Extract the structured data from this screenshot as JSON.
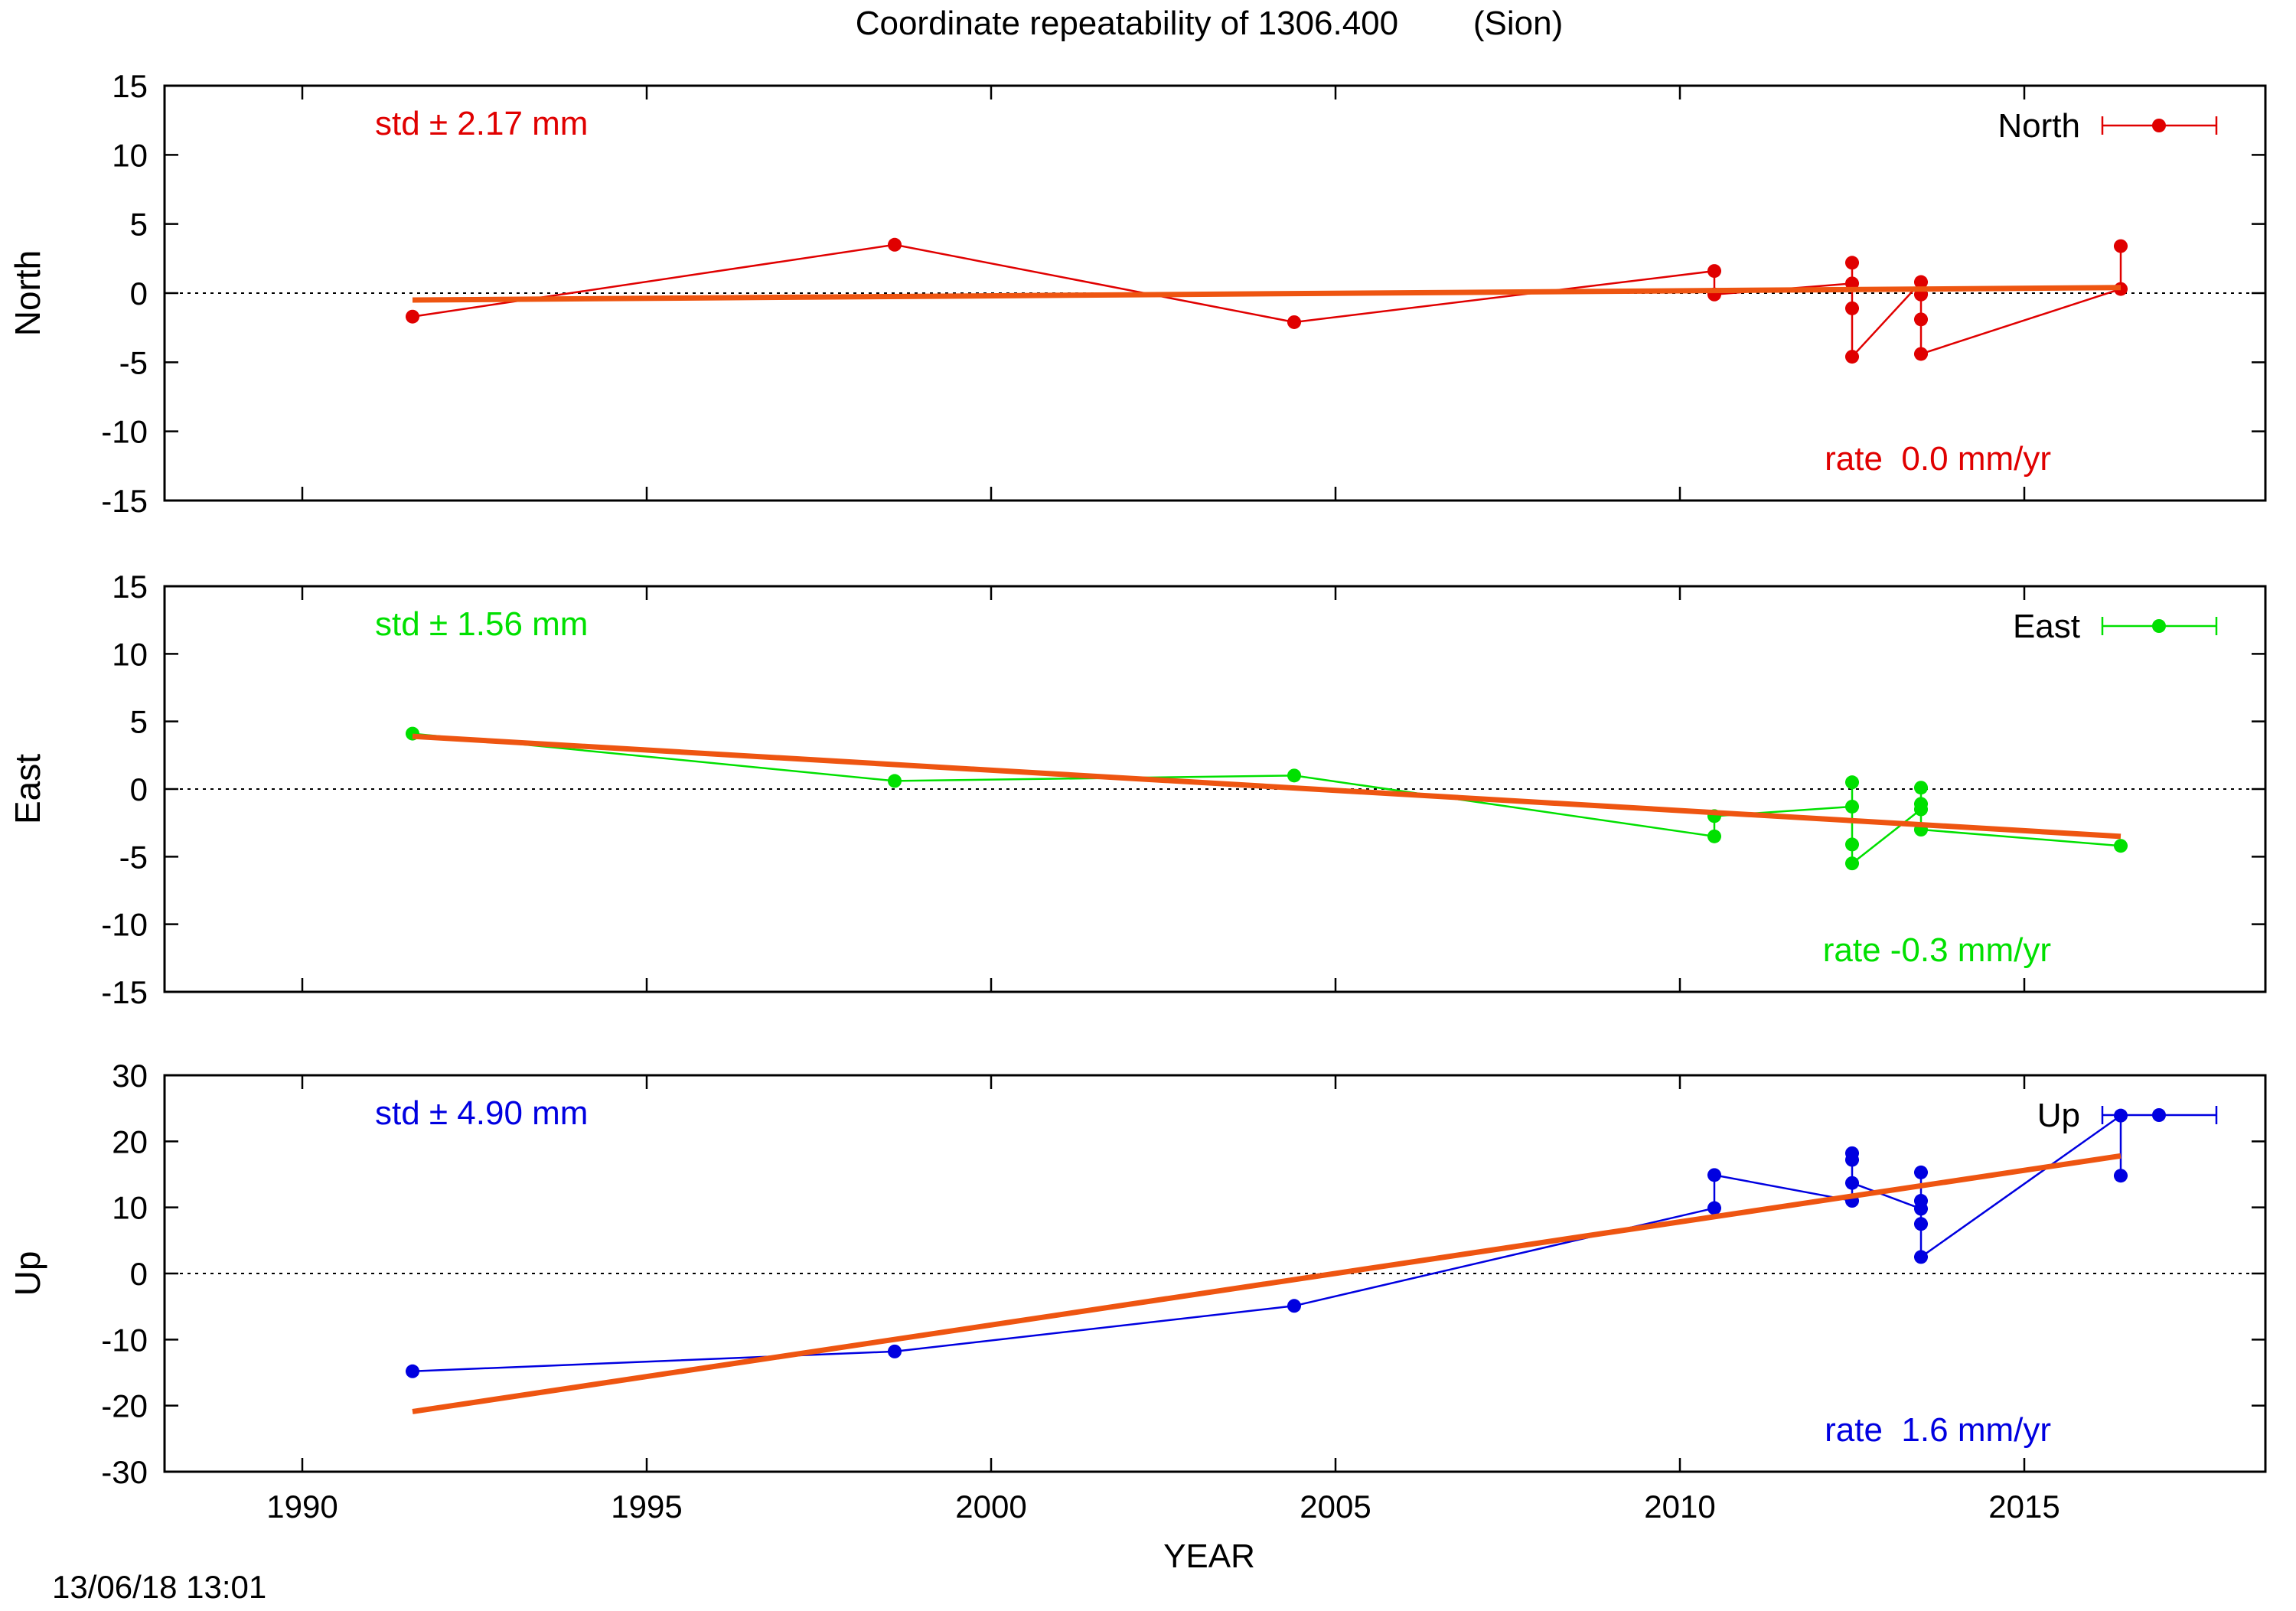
{
  "page": {
    "title": "Coordinate repeatability of 1306.400        (Sion)",
    "timestamp": "13/06/18 13:01"
  },
  "chart_data": [
    {
      "type": "line",
      "panel": "north",
      "ylabel": "North",
      "xlabel": "",
      "xlim": [
        1988,
        2018.5
      ],
      "ylim": [
        -15,
        15
      ],
      "yticks": [
        -15,
        -10,
        -5,
        0,
        5,
        10,
        15
      ],
      "xticks": [
        1990,
        1995,
        2000,
        2005,
        2010,
        2015
      ],
      "zero_line": true,
      "color": "#e00000",
      "std_label": "std ± 2.17 mm",
      "rate_label": "rate  0.0 mm/yr",
      "legend": {
        "label": "North",
        "position": "top-right"
      },
      "series": [
        {
          "name": "North",
          "x": [
            1991.6,
            1998.6,
            2004.4,
            2010.5,
            2010.5,
            2012.5,
            2012.5,
            2012.5,
            2012.5,
            2013.5,
            2013.5,
            2013.5,
            2013.5,
            2016.4,
            2016.4
          ],
          "y": [
            -1.7,
            3.5,
            -2.1,
            1.6,
            -0.1,
            0.7,
            2.2,
            -1.1,
            -4.6,
            0.8,
            -0.1,
            -1.9,
            -4.4,
            0.3,
            3.4
          ]
        }
      ],
      "trend": {
        "x": [
          1991.6,
          2016.4
        ],
        "y": [
          -0.5,
          0.4
        ]
      }
    },
    {
      "type": "line",
      "panel": "east",
      "ylabel": "East",
      "xlabel": "",
      "xlim": [
        1988,
        2018.5
      ],
      "ylim": [
        -15,
        15
      ],
      "yticks": [
        -15,
        -10,
        -5,
        0,
        5,
        10,
        15
      ],
      "xticks": [
        1990,
        1995,
        2000,
        2005,
        2010,
        2015
      ],
      "zero_line": true,
      "color": "#00e000",
      "std_label": "std ± 1.56 mm",
      "rate_label": "rate -0.3 mm/yr",
      "legend": {
        "label": "East",
        "position": "top-right"
      },
      "series": [
        {
          "name": "East",
          "x": [
            1991.6,
            1998.6,
            2004.4,
            2010.5,
            2010.5,
            2012.5,
            2012.5,
            2012.5,
            2012.5,
            2013.5,
            2013.5,
            2013.5,
            2013.5,
            2016.4
          ],
          "y": [
            4.1,
            0.6,
            1.0,
            -3.5,
            -2.0,
            -1.3,
            0.5,
            -4.1,
            -5.5,
            -1.5,
            0.1,
            -1.1,
            -3.0,
            -4.2
          ]
        }
      ],
      "trend": {
        "x": [
          1991.6,
          2016.4
        ],
        "y": [
          3.9,
          -3.5
        ]
      }
    },
    {
      "type": "line",
      "panel": "up",
      "ylabel": "Up",
      "xlabel": "YEAR",
      "xlim": [
        1988,
        2018.5
      ],
      "ylim": [
        -30,
        30
      ],
      "yticks": [
        -30,
        -20,
        -10,
        0,
        10,
        20,
        30
      ],
      "xticks": [
        1990,
        1995,
        2000,
        2005,
        2010,
        2015
      ],
      "zero_line": true,
      "color": "#0000e0",
      "std_label": "std ± 4.90 mm",
      "rate_label": "rate  1.6 mm/yr",
      "legend": {
        "label": "Up",
        "position": "top-right"
      },
      "series": [
        {
          "name": "Up",
          "x": [
            1991.6,
            1998.6,
            2004.4,
            2010.5,
            2010.5,
            2012.5,
            2012.5,
            2012.5,
            2012.5,
            2013.5,
            2013.5,
            2013.5,
            2013.5,
            2013.5,
            2016.4,
            2016.4
          ],
          "y": [
            -14.8,
            -11.8,
            -4.9,
            9.9,
            14.9,
            11.0,
            18.2,
            17.2,
            13.7,
            9.8,
            15.3,
            11.0,
            7.5,
            2.5,
            23.9,
            14.8
          ]
        }
      ],
      "trend": {
        "x": [
          1991.6,
          2016.4
        ],
        "y": [
          -20.9,
          17.8
        ]
      }
    }
  ]
}
